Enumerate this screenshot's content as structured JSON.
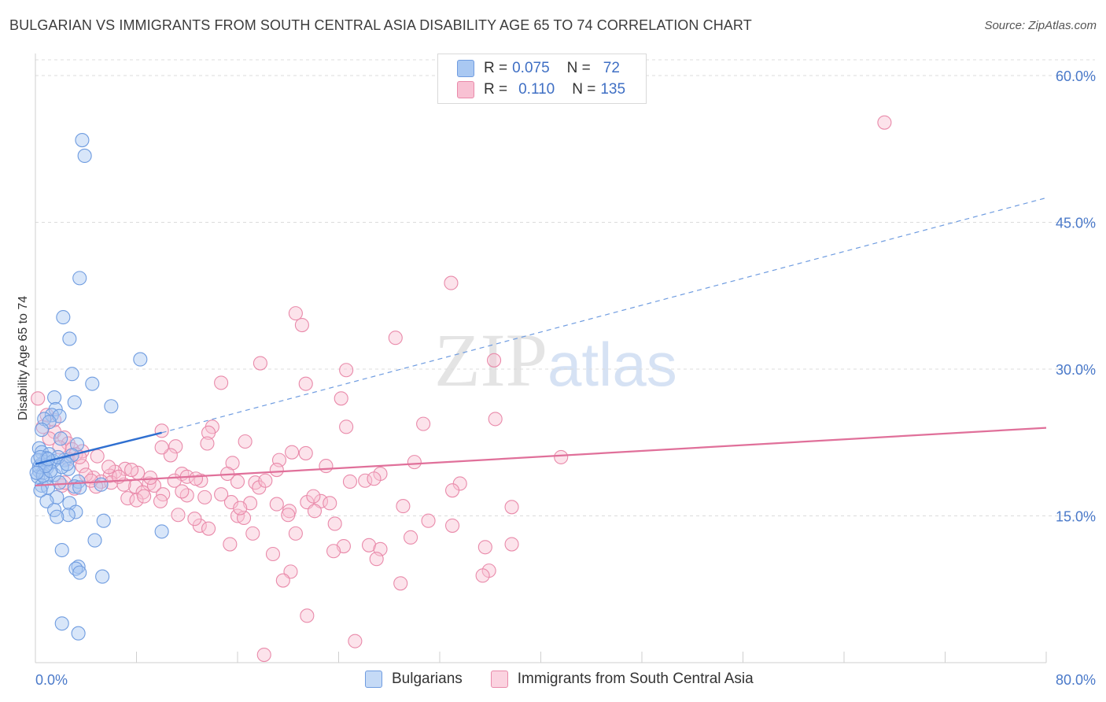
{
  "title": "BULGARIAN VS IMMIGRANTS FROM SOUTH CENTRAL ASIA DISABILITY AGE 65 TO 74 CORRELATION CHART",
  "source": "Source: ZipAtlas.com",
  "watermark": {
    "zip": "ZIP",
    "atlas": "atlas"
  },
  "legend": {
    "rows": [
      {
        "r_label": "R =",
        "r_value": "0.075",
        "n_label": "N =",
        "n_value": "72",
        "color": "#a9c8f2",
        "border": "#6f9ce0"
      },
      {
        "r_label": "R =",
        "r_value": "0.110",
        "n_label": "N =",
        "n_value": "135",
        "color": "#f8c1d3",
        "border": "#e98aaa"
      }
    ]
  },
  "bottom_legend": [
    "Bulgarians",
    "Immigrants from South Central Asia"
  ],
  "chart_data": {
    "type": "scatter",
    "title": "BULGARIAN VS IMMIGRANTS FROM SOUTH CENTRAL ASIA DISABILITY AGE 65 TO 74 CORRELATION CHART",
    "xlabel": "",
    "ylabel": "Disability Age 65 to 74",
    "xlim": [
      0,
      80
    ],
    "ylim": [
      0,
      60
    ],
    "x_tick_labels": [
      "0.0%",
      "80.0%"
    ],
    "y_ticks": [
      15,
      30,
      45,
      60
    ],
    "y_tick_labels": [
      "15.0%",
      "30.0%",
      "45.0%",
      "60.0%"
    ],
    "grid": "horizontal dashed",
    "series": [
      {
        "name": "Bulgarians",
        "color": "#a9c8f2",
        "edge": "#6f9ce0",
        "trend": {
          "x0": 0,
          "y0": 20.3,
          "x1": 10,
          "y1": 23.5,
          "dashed_to_x": 80,
          "dashed_to_y": 47.5,
          "color": "#2f6fd0"
        },
        "points": [
          [
            3.7,
            53.4
          ],
          [
            3.9,
            51.8
          ],
          [
            3.5,
            39.3
          ],
          [
            2.2,
            35.3
          ],
          [
            2.7,
            33.1
          ],
          [
            8.3,
            31.0
          ],
          [
            2.9,
            29.5
          ],
          [
            4.5,
            28.5
          ],
          [
            1.5,
            27.1
          ],
          [
            3.1,
            26.6
          ],
          [
            6.0,
            26.2
          ],
          [
            1.6,
            25.9
          ],
          [
            1.3,
            25.3
          ],
          [
            1.9,
            25.2
          ],
          [
            0.7,
            24.9
          ],
          [
            1.1,
            24.6
          ],
          [
            0.5,
            23.8
          ],
          [
            2.0,
            22.9
          ],
          [
            3.3,
            22.3
          ],
          [
            0.3,
            21.9
          ],
          [
            0.5,
            21.5
          ],
          [
            1.1,
            21.3
          ],
          [
            2.9,
            21.2
          ],
          [
            0.9,
            20.9
          ],
          [
            2.3,
            20.7
          ],
          [
            0.7,
            20.5
          ],
          [
            1.2,
            20.4
          ],
          [
            0.4,
            20.2
          ],
          [
            0.9,
            19.9
          ],
          [
            2.6,
            19.8
          ],
          [
            0.3,
            19.6
          ],
          [
            0.6,
            19.4
          ],
          [
            1.5,
            19.2
          ],
          [
            0.2,
            19.0
          ],
          [
            0.8,
            18.8
          ],
          [
            3.4,
            18.5
          ],
          [
            1.9,
            18.4
          ],
          [
            0.5,
            18.1
          ],
          [
            3.1,
            18.0
          ],
          [
            5.2,
            18.2
          ],
          [
            1.0,
            17.9
          ],
          [
            0.4,
            17.6
          ],
          [
            3.5,
            17.9
          ],
          [
            1.7,
            16.9
          ],
          [
            0.9,
            16.5
          ],
          [
            2.7,
            16.3
          ],
          [
            1.5,
            15.6
          ],
          [
            3.2,
            15.4
          ],
          [
            2.6,
            15.1
          ],
          [
            1.7,
            14.9
          ],
          [
            5.4,
            14.5
          ],
          [
            10.0,
            13.4
          ],
          [
            4.7,
            12.5
          ],
          [
            2.1,
            11.5
          ],
          [
            3.4,
            9.8
          ],
          [
            3.2,
            9.6
          ],
          [
            3.5,
            9.2
          ],
          [
            5.3,
            8.8
          ],
          [
            2.1,
            4.0
          ],
          [
            3.4,
            3.0
          ],
          [
            0.3,
            20.0
          ],
          [
            1.4,
            20.6
          ],
          [
            0.6,
            19.1
          ],
          [
            2.1,
            20.0
          ],
          [
            1.8,
            21.0
          ],
          [
            0.2,
            20.7
          ],
          [
            1.2,
            19.6
          ],
          [
            0.8,
            20.1
          ],
          [
            0.4,
            21.0
          ],
          [
            2.5,
            20.3
          ],
          [
            1.0,
            20.8
          ],
          [
            0.1,
            19.4
          ]
        ]
      },
      {
        "name": "Immigrants from South Central Asia",
        "color": "#f8c1d3",
        "edge": "#e98aaa",
        "trend": {
          "x0": 0,
          "y0": 18.1,
          "x1": 80,
          "y1": 24.0,
          "color": "#e0709a"
        },
        "points": [
          [
            67.2,
            55.2
          ],
          [
            32.9,
            38.8
          ],
          [
            20.6,
            35.7
          ],
          [
            21.1,
            34.5
          ],
          [
            28.5,
            33.2
          ],
          [
            36.3,
            30.9
          ],
          [
            17.8,
            30.6
          ],
          [
            24.6,
            29.9
          ],
          [
            14.7,
            28.6
          ],
          [
            21.4,
            28.5
          ],
          [
            24.2,
            27.0
          ],
          [
            0.2,
            27.0
          ],
          [
            36.4,
            24.9
          ],
          [
            30.7,
            24.4
          ],
          [
            24.6,
            24.1
          ],
          [
            14.0,
            24.1
          ],
          [
            10.0,
            23.7
          ],
          [
            1.5,
            23.6
          ],
          [
            13.7,
            23.5
          ],
          [
            13.6,
            22.4
          ],
          [
            0.6,
            24.1
          ],
          [
            1.1,
            22.9
          ],
          [
            2.3,
            23.0
          ],
          [
            2.6,
            22.4
          ],
          [
            11.1,
            22.1
          ],
          [
            16.6,
            22.6
          ],
          [
            2.9,
            21.8
          ],
          [
            3.7,
            21.6
          ],
          [
            20.3,
            21.5
          ],
          [
            21.4,
            21.4
          ],
          [
            10.7,
            21.2
          ],
          [
            4.9,
            21.1
          ],
          [
            41.6,
            21.0
          ],
          [
            19.3,
            20.7
          ],
          [
            15.6,
            20.4
          ],
          [
            3.7,
            20.1
          ],
          [
            7.1,
            19.8
          ],
          [
            6.3,
            19.5
          ],
          [
            23.0,
            20.1
          ],
          [
            8.1,
            19.4
          ],
          [
            27.3,
            19.3
          ],
          [
            11.6,
            19.3
          ],
          [
            12.0,
            19.0
          ],
          [
            5.9,
            19.1
          ],
          [
            11.0,
            18.6
          ],
          [
            4.6,
            18.9
          ],
          [
            5.2,
            18.5
          ],
          [
            6.0,
            18.4
          ],
          [
            9.0,
            18.3
          ],
          [
            9.4,
            18.1
          ],
          [
            7.9,
            18.0
          ],
          [
            13.1,
            18.6
          ],
          [
            16.0,
            18.5
          ],
          [
            17.4,
            18.4
          ],
          [
            17.7,
            17.9
          ],
          [
            18.2,
            18.6
          ],
          [
            24.9,
            18.5
          ],
          [
            26.1,
            18.6
          ],
          [
            33.6,
            18.3
          ],
          [
            2.1,
            18.1
          ],
          [
            3.1,
            17.8
          ],
          [
            4.8,
            18.0
          ],
          [
            7.0,
            18.2
          ],
          [
            8.5,
            17.4
          ],
          [
            10.1,
            17.2
          ],
          [
            12.0,
            17.1
          ],
          [
            13.4,
            16.9
          ],
          [
            7.3,
            16.8
          ],
          [
            8.0,
            16.6
          ],
          [
            9.9,
            16.5
          ],
          [
            15.5,
            16.4
          ],
          [
            17.0,
            16.3
          ],
          [
            19.1,
            16.2
          ],
          [
            21.5,
            16.4
          ],
          [
            22.6,
            16.5
          ],
          [
            23.3,
            16.3
          ],
          [
            29.1,
            16.0
          ],
          [
            37.7,
            15.9
          ],
          [
            20.1,
            15.5
          ],
          [
            22.1,
            15.5
          ],
          [
            16.0,
            15.0
          ],
          [
            16.5,
            14.8
          ],
          [
            20.0,
            15.1
          ],
          [
            11.3,
            15.1
          ],
          [
            13.0,
            14.0
          ],
          [
            13.7,
            13.7
          ],
          [
            23.7,
            14.2
          ],
          [
            31.1,
            14.5
          ],
          [
            33.0,
            14.0
          ],
          [
            17.2,
            13.2
          ],
          [
            20.6,
            13.2
          ],
          [
            29.7,
            12.8
          ],
          [
            15.4,
            12.1
          ],
          [
            26.4,
            12.0
          ],
          [
            24.4,
            11.9
          ],
          [
            27.3,
            11.6
          ],
          [
            23.6,
            11.4
          ],
          [
            35.6,
            11.8
          ],
          [
            37.7,
            12.1
          ],
          [
            18.8,
            11.1
          ],
          [
            27.0,
            10.6
          ],
          [
            20.2,
            9.3
          ],
          [
            35.9,
            9.4
          ],
          [
            35.4,
            8.9
          ],
          [
            19.6,
            8.4
          ],
          [
            28.9,
            8.1
          ],
          [
            21.5,
            4.8
          ],
          [
            25.3,
            2.2
          ],
          [
            18.1,
            0.8
          ],
          [
            10.0,
            22.0
          ],
          [
            3.2,
            21.3
          ],
          [
            5.8,
            20.0
          ],
          [
            1.5,
            24.8
          ],
          [
            2.6,
            20.8
          ],
          [
            4.0,
            19.2
          ],
          [
            7.6,
            19.7
          ],
          [
            11.6,
            17.5
          ],
          [
            14.7,
            17.2
          ],
          [
            19.1,
            19.7
          ],
          [
            26.8,
            18.8
          ],
          [
            30.0,
            20.5
          ],
          [
            33.0,
            17.6
          ],
          [
            12.6,
            14.7
          ],
          [
            15.2,
            19.3
          ],
          [
            16.2,
            15.8
          ],
          [
            22.0,
            17.0
          ],
          [
            6.6,
            19.0
          ],
          [
            9.1,
            18.9
          ],
          [
            3.5,
            21.0
          ],
          [
            0.9,
            25.3
          ],
          [
            1.9,
            22.0
          ],
          [
            2.3,
            18.4
          ],
          [
            4.4,
            18.6
          ],
          [
            12.7,
            18.8
          ],
          [
            8.6,
            17.0
          ]
        ]
      }
    ]
  }
}
